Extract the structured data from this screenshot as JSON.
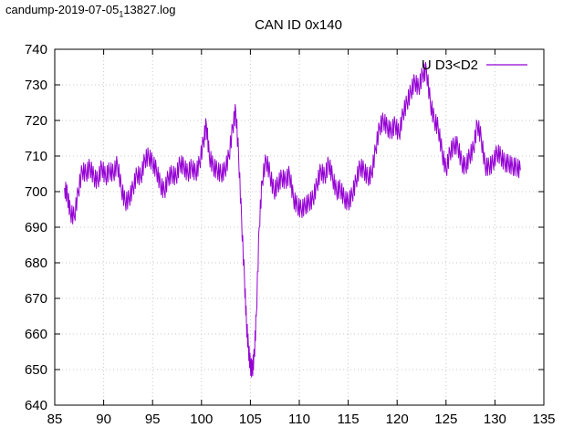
{
  "file_label": {
    "prefix": "candump-2019-07-05",
    "subscript": "1",
    "suffix": "13827.log"
  },
  "chart_data": {
    "type": "line",
    "title": "CAN ID 0x140",
    "xlabel": "",
    "ylabel": "",
    "xlim": [
      85,
      135
    ],
    "ylim": [
      640,
      740
    ],
    "xticks": [
      "85",
      "90",
      "95",
      "100",
      "105",
      "110",
      "115",
      "120",
      "125",
      "130",
      "135"
    ],
    "yticks": [
      "640",
      "650",
      "660",
      "670",
      "680",
      "690",
      "700",
      "710",
      "720",
      "730",
      "740"
    ],
    "grid": true,
    "legend_position": "top-right",
    "series": [
      {
        "name": "U D3<D2",
        "color": "#9400d3",
        "x": [
          86.0,
          86.3,
          86.6,
          87.0,
          87.4,
          87.8,
          88.2,
          88.6,
          89.0,
          89.4,
          89.8,
          90.2,
          90.6,
          91.0,
          91.4,
          91.8,
          92.2,
          92.6,
          93.0,
          93.4,
          93.8,
          94.2,
          94.6,
          95.0,
          95.4,
          95.8,
          96.2,
          96.6,
          97.0,
          97.4,
          97.8,
          98.2,
          98.6,
          99.0,
          99.4,
          99.8,
          100.2,
          100.5,
          100.8,
          101.2,
          101.6,
          102.0,
          102.4,
          102.8,
          103.2,
          103.5,
          103.8,
          104.1,
          104.4,
          104.6,
          104.8,
          105.0,
          105.2,
          105.4,
          105.6,
          105.9,
          106.2,
          106.6,
          107.0,
          107.4,
          107.8,
          108.2,
          108.6,
          109.0,
          109.4,
          109.8,
          110.2,
          110.6,
          111.0,
          111.4,
          111.8,
          112.2,
          112.6,
          113.0,
          113.4,
          113.8,
          114.2,
          114.6,
          115.0,
          115.4,
          115.8,
          116.2,
          116.6,
          117.0,
          117.4,
          117.8,
          118.2,
          118.6,
          119.0,
          119.4,
          119.8,
          120.2,
          120.6,
          121.0,
          121.4,
          121.8,
          122.2,
          122.6,
          123.0,
          123.4,
          123.8,
          124.2,
          124.6,
          125.0,
          125.4,
          125.8,
          126.2,
          126.6,
          127.0,
          127.4,
          127.8,
          128.2,
          128.6,
          129.0,
          129.4,
          129.8,
          130.2,
          130.6,
          131.0,
          131.4,
          131.8,
          132.2,
          132.6
        ],
        "values": [
          701,
          699,
          694,
          693,
          700,
          706,
          705,
          707,
          704,
          703,
          707,
          704,
          706,
          705,
          708,
          701,
          697,
          698,
          701,
          705,
          704,
          709,
          710,
          708,
          706,
          702,
          700,
          704,
          705,
          704,
          708,
          707,
          705,
          707,
          705,
          708,
          714,
          719,
          710,
          707,
          706,
          705,
          706,
          710,
          718,
          723,
          710,
          692,
          675,
          663,
          656,
          651,
          650,
          654,
          665,
          690,
          703,
          709,
          705,
          700,
          702,
          704,
          703,
          705,
          698,
          696,
          695,
          696,
          697,
          698,
          702,
          706,
          704,
          708,
          704,
          700,
          701,
          698,
          697,
          699,
          703,
          707,
          706,
          704,
          705,
          712,
          718,
          720,
          718,
          717,
          719,
          716,
          722,
          725,
          728,
          731,
          729,
          733,
          734,
          725,
          720,
          718,
          711,
          706,
          711,
          713,
          713,
          708,
          707,
          710,
          712,
          719,
          715,
          707,
          707,
          708,
          711,
          710,
          708,
          708,
          707,
          707,
          706
        ]
      }
    ]
  }
}
